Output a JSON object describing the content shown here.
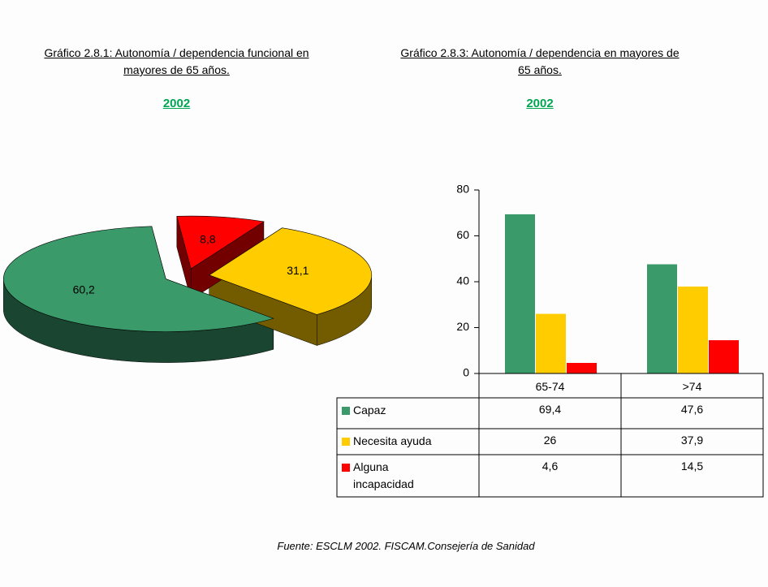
{
  "chart_data": [
    {
      "type": "pie",
      "title": "Gráfico 2.8.1: Autonomía / dependencia funcional en mayores de 65 años.",
      "subtitle": "2002",
      "values": [
        60.2,
        31.1,
        8.8
      ],
      "value_labels": [
        "60,2",
        "31,1",
        "8,8"
      ],
      "colors": [
        "#3a9a6a",
        "#ffcc00",
        "#ff0000"
      ]
    },
    {
      "type": "bar",
      "title": "Gráfico 2.8.3: Autonomía / dependencia en mayores de 65 años.",
      "subtitle": "2002",
      "categories": [
        "65-74",
        ">74"
      ],
      "series": [
        {
          "name": "Capaz",
          "color": "#3a9a6a",
          "values": [
            69.4,
            47.6
          ],
          "value_labels": [
            "69,4",
            "47,6"
          ]
        },
        {
          "name": "Necesita ayuda",
          "color": "#ffcc00",
          "values": [
            26,
            37.9
          ],
          "value_labels": [
            "26",
            "37,9"
          ]
        },
        {
          "name": "Alguna incapacidad",
          "color": "#ff0000",
          "values": [
            4.6,
            14.5
          ],
          "value_labels": [
            "4,6",
            "14,5"
          ]
        }
      ],
      "ylim": [
        0,
        80
      ],
      "yticks": [
        0,
        20,
        40,
        60,
        80
      ],
      "grid": false,
      "data_table": true
    }
  ],
  "source": "Fuente: ESCLM 2002. FISCAM.Consejería de Sanidad"
}
